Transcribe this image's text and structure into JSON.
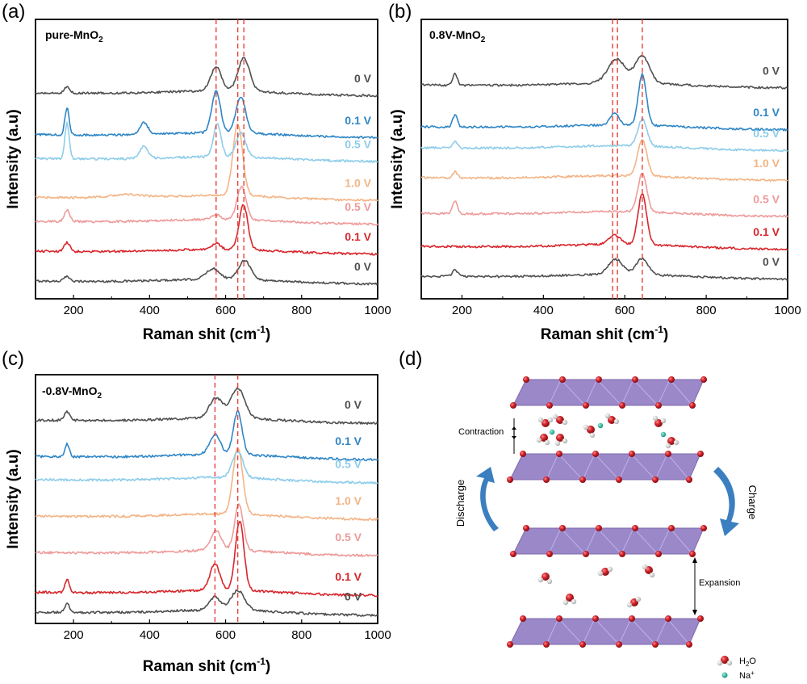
{
  "figure": {
    "panel_a_letter": "(a)",
    "panel_b_letter": "(b)",
    "panel_c_letter": "(c)",
    "panel_d_letter": "(d)"
  },
  "colors": {
    "0 V": "#505050",
    "0.1 V": "#2f86c6",
    "0.5 V": "#8ecde9",
    "1.0 V": "#f2b587",
    "0.5 V (discharge)": "#ee9b9b",
    "0.1 V (discharge)": "#d7262c",
    "marker": "#e8413b",
    "layer": "#9b88c9",
    "arrow": "#3b7fc0",
    "oxygen": "#d2232a",
    "sodium": "#22b7a0"
  },
  "chart_data": [
    {
      "type": "line",
      "panel": "a",
      "title_main": "pure-MnO",
      "title_sub": "2",
      "xlabel_main": "Raman shit (cm",
      "xlabel_sup": "-1",
      "xlabel_close": ")",
      "ylabel": "Intensity (a.u)",
      "xlim": [
        100,
        1000
      ],
      "xticks": [
        "200",
        "400",
        "600",
        "800",
        "1000"
      ],
      "marker_lines": [
        575,
        632,
        648
      ],
      "series": [
        {
          "name": "0 V",
          "label": "0 V",
          "color_key": "0 V",
          "offset": 0.0,
          "peaks": [
            [
              183,
              0.15,
              12
            ],
            [
              567,
              0.35,
              25
            ],
            [
              650,
              0.65,
              22
            ]
          ]
        },
        {
          "name": "0.1 V",
          "label": "0.1 V",
          "color_key": "0.1 V (discharge)",
          "offset": 1.0,
          "peaks": [
            [
              183,
              0.3,
              10
            ],
            [
              575,
              0.2,
              15
            ],
            [
              647,
              1.5,
              16
            ]
          ]
        },
        {
          "name": "0.5 V",
          "label": "0.5 V",
          "color_key": "0.5 V (discharge)",
          "offset": 2.0,
          "peaks": [
            [
              183,
              0.4,
              10
            ],
            [
              575,
              0.15,
              15
            ],
            [
              642,
              1.1,
              17
            ]
          ]
        },
        {
          "name": "1.0 V",
          "label": "1.0 V",
          "color_key": "1.0 V",
          "offset": 2.8,
          "peaks": [
            [
              340,
              0.1,
              60
            ],
            [
              632,
              2.4,
              18
            ]
          ]
        },
        {
          "name": "0.5 V",
          "label": "0.5 V",
          "color_key": "0.5 V",
          "offset": 4.1,
          "peaks": [
            [
              183,
              1.2,
              8
            ],
            [
              385,
              0.4,
              15
            ],
            [
              578,
              1.1,
              14
            ],
            [
              640,
              0.8,
              18
            ]
          ]
        },
        {
          "name": "0.1 V",
          "label": "0.1 V",
          "color_key": "0.1 V",
          "offset": 4.9,
          "peaks": [
            [
              183,
              0.9,
              8
            ],
            [
              385,
              0.4,
              15
            ],
            [
              575,
              1.4,
              16
            ],
            [
              640,
              1.2,
              18
            ]
          ]
        },
        {
          "name": "0 V",
          "label": "0 V",
          "color_key": "0 V",
          "offset": 6.3,
          "peaks": [
            [
              183,
              0.2,
              10
            ],
            [
              575,
              0.8,
              20
            ],
            [
              648,
              1.1,
              22
            ]
          ]
        }
      ]
    },
    {
      "type": "line",
      "panel": "b",
      "title_main": "0.8V-MnO",
      "title_sub": "2",
      "xlabel_main": "Raman shit (cm",
      "xlabel_sup": "-1",
      "xlabel_close": ")",
      "ylabel": "Intensity (a.u)",
      "xlim": [
        100,
        1000
      ],
      "xticks": [
        "200",
        "400",
        "600",
        "800",
        "1000"
      ],
      "marker_lines": [
        570,
        582,
        643
      ],
      "series": [
        {
          "name": "0 V",
          "label": "0 V",
          "color_key": "0 V",
          "offset": 0.0,
          "peaks": [
            [
              183,
              0.2,
              10
            ],
            [
              578,
              0.5,
              25
            ],
            [
              643,
              0.55,
              20
            ]
          ]
        },
        {
          "name": "0.1 V",
          "label": "0.1 V",
          "color_key": "0.1 V (discharge)",
          "offset": 1.0,
          "peaks": [
            [
              575,
              0.3,
              20
            ],
            [
              643,
              1.7,
              15
            ]
          ]
        },
        {
          "name": "0.5 V",
          "label": "0.5 V",
          "color_key": "0.5 V (discharge)",
          "offset": 2.1,
          "peaks": [
            [
              183,
              0.45,
              8
            ],
            [
              643,
              1.3,
              15
            ]
          ]
        },
        {
          "name": "1.0 V",
          "label": "1.0 V",
          "color_key": "1.0 V",
          "offset": 3.3,
          "peaks": [
            [
              183,
              0.2,
              8
            ],
            [
              643,
              1.2,
              16
            ]
          ]
        },
        {
          "name": "0.5 V",
          "label": "0.5 V",
          "color_key": "0.5 V",
          "offset": 4.3,
          "peaks": [
            [
              183,
              0.2,
              8
            ],
            [
              643,
              0.9,
              16
            ]
          ]
        },
        {
          "name": "0.1 V",
          "label": "0.1 V",
          "color_key": "0.1 V",
          "offset": 5.0,
          "peaks": [
            [
              183,
              0.4,
              8
            ],
            [
              575,
              0.4,
              15
            ],
            [
              643,
              1.7,
              14
            ]
          ]
        },
        {
          "name": "0 V",
          "label": "0 V",
          "color_key": "0 V",
          "offset": 6.4,
          "peaks": [
            [
              183,
              0.4,
              8
            ],
            [
              580,
              0.8,
              30
            ],
            [
              643,
              0.9,
              25
            ]
          ]
        }
      ]
    },
    {
      "type": "line",
      "panel": "c",
      "title_main": "-0.8V-MnO",
      "title_sub": "2",
      "xlabel_main": "Raman shit (cm",
      "xlabel_sup": "-1",
      "xlabel_close": ")",
      "ylabel": "Intensity (a.u)",
      "xlim": [
        100,
        1000
      ],
      "xticks": [
        "200",
        "400",
        "600",
        "800",
        "1000"
      ],
      "marker_lines": [
        572,
        632
      ],
      "series": [
        {
          "name": "0 V",
          "label": "0 V",
          "color_key": "0 V",
          "offset": 0.0,
          "peaks": [
            [
              183,
              0.25,
              10
            ],
            [
              572,
              0.4,
              20
            ],
            [
              632,
              0.6,
              25
            ]
          ]
        },
        {
          "name": "0.1 V",
          "label": "0.1 V",
          "color_key": "0.1 V (discharge)",
          "offset": 0.6,
          "peaks": [
            [
              183,
              0.4,
              8
            ],
            [
              572,
              0.8,
              18
            ],
            [
              637,
              2.1,
              16
            ]
          ]
        },
        {
          "name": "0.5 V",
          "label": "0.5 V",
          "color_key": "0.5 V (discharge)",
          "offset": 1.8,
          "peaks": [
            [
              575,
              0.6,
              20
            ],
            [
              635,
              1.4,
              16
            ]
          ]
        },
        {
          "name": "1.0 V",
          "label": "1.0 V",
          "color_key": "1.0 V",
          "offset": 2.9,
          "peaks": [
            [
              632,
              2.0,
              18
            ]
          ]
        },
        {
          "name": "0.5 V",
          "label": "0.5 V",
          "color_key": "0.5 V",
          "offset": 4.0,
          "peaks": [
            [
              632,
              0.8,
              20
            ]
          ]
        },
        {
          "name": "0.1 V",
          "label": "0.1 V",
          "color_key": "0.1 V",
          "offset": 4.7,
          "peaks": [
            [
              183,
              0.4,
              8
            ],
            [
              572,
              0.6,
              20
            ],
            [
              632,
              1.3,
              16
            ]
          ]
        },
        {
          "name": "0 V",
          "label": "0 V",
          "color_key": "0 V",
          "offset": 5.8,
          "peaks": [
            [
              183,
              0.25,
              10
            ],
            [
              575,
              0.6,
              25
            ],
            [
              632,
              0.9,
              25
            ]
          ]
        }
      ]
    }
  ],
  "schematic": {
    "contraction_label": "Contraction",
    "expansion_label": "Expansion",
    "discharge_label": "Discharge",
    "charge_label": "Charge",
    "legend": {
      "water_main": "H",
      "water_sub": "2",
      "water_tail": "O",
      "sodium_main": "Na",
      "sodium_sup": "+"
    }
  }
}
